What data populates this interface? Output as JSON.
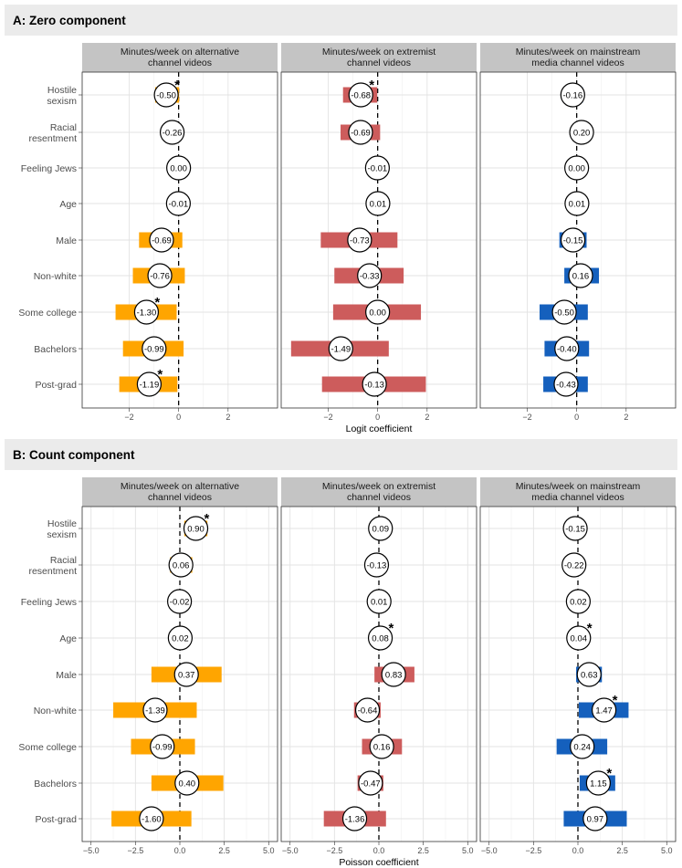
{
  "chart_data": [
    {
      "type": "bar",
      "panel_title": "A: Zero component",
      "xlabel": "Logit coefficient",
      "categories": [
        "Hostile sexism",
        "Racial resentment",
        "Feeling Jews",
        "Age",
        "Male",
        "Non-white",
        "Some college",
        "Bachelors",
        "Post-grad"
      ],
      "category_lines": [
        [
          "Hostile",
          "sexism"
        ],
        [
          "Racial",
          "resentment"
        ],
        [
          "Feeling Jews"
        ],
        [
          "Age"
        ],
        [
          "Male"
        ],
        [
          "Non-white"
        ],
        [
          "Some college"
        ],
        [
          "Bachelors"
        ],
        [
          "Post-grad"
        ]
      ],
      "xlim": [
        -3.9,
        4.0
      ],
      "ticks": [
        -2,
        0,
        2
      ],
      "tick_labels": [
        "−2",
        "0",
        "2"
      ],
      "series": [
        {
          "name": "alternative",
          "title_lines": [
            "Minutes/week on alternative",
            "channel videos"
          ],
          "color": "#FFA500",
          "estimates": [
            -0.5,
            -0.26,
            0.0,
            -0.01,
            -0.69,
            -0.76,
            -1.3,
            -0.99,
            -1.19
          ],
          "labels": [
            "-0.50",
            "-0.26",
            "0.00",
            "-0.01",
            "-0.69",
            "-0.76",
            "-1.30",
            "-0.99",
            "-1.19"
          ],
          "ci_low": [
            -0.95,
            -0.65,
            -0.03,
            -0.03,
            -1.6,
            -1.85,
            -2.55,
            -2.25,
            -2.4
          ],
          "ci_high": [
            0.02,
            0.05,
            0.03,
            0.02,
            0.15,
            0.25,
            -0.08,
            0.2,
            -0.05
          ],
          "significant": [
            true,
            false,
            false,
            false,
            false,
            false,
            true,
            false,
            true
          ]
        },
        {
          "name": "extremist",
          "title_lines": [
            "Minutes/week on extremist",
            "channel videos"
          ],
          "color": "#CD5C5C",
          "estimates": [
            -0.68,
            -0.69,
            -0.01,
            0.01,
            -0.73,
            -0.33,
            0.0,
            -1.49,
            -0.13
          ],
          "labels": [
            "-0.68",
            "-0.69",
            "-0.01",
            "0.01",
            "-0.73",
            "-0.33",
            "0.00",
            "-1.49",
            "-0.13"
          ],
          "ci_low": [
            -1.4,
            -1.5,
            -0.04,
            -0.02,
            -2.3,
            -1.75,
            -1.8,
            -3.5,
            -2.25
          ],
          "ci_high": [
            -0.02,
            0.1,
            0.02,
            0.04,
            0.8,
            1.05,
            1.75,
            0.45,
            1.95
          ],
          "significant": [
            true,
            false,
            false,
            false,
            false,
            false,
            false,
            false,
            false
          ]
        },
        {
          "name": "mainstream",
          "title_lines": [
            "Minutes/week on mainstream",
            "media channel videos"
          ],
          "color": "#1560BD",
          "estimates": [
            -0.16,
            0.2,
            0.0,
            0.01,
            -0.15,
            0.16,
            -0.5,
            -0.4,
            -0.43
          ],
          "labels": [
            "-0.16",
            "0.20",
            "0.00",
            "0.01",
            "-0.15",
            "0.16",
            "-0.50",
            "-0.40",
            "-0.43"
          ],
          "ci_low": [
            -0.55,
            -0.15,
            -0.03,
            -0.02,
            -0.7,
            -0.5,
            -1.5,
            -1.3,
            -1.35
          ],
          "ci_high": [
            0.25,
            0.55,
            0.03,
            0.04,
            0.4,
            0.9,
            0.45,
            0.5,
            0.45
          ],
          "significant": [
            false,
            false,
            false,
            false,
            false,
            false,
            false,
            false,
            false
          ]
        }
      ]
    },
    {
      "type": "bar",
      "panel_title": "B: Count component",
      "xlabel": "Poisson coefficient",
      "categories": [
        "Hostile sexism",
        "Racial resentment",
        "Feeling Jews",
        "Age",
        "Male",
        "Non-white",
        "Some college",
        "Bachelors",
        "Post-grad"
      ],
      "category_lines": [
        [
          "Hostile",
          "sexism"
        ],
        [
          "Racial",
          "resentment"
        ],
        [
          "Feeling Jews"
        ],
        [
          "Age"
        ],
        [
          "Male"
        ],
        [
          "Non-white"
        ],
        [
          "Some college"
        ],
        [
          "Bachelors"
        ],
        [
          "Post-grad"
        ]
      ],
      "xlim": [
        -5.5,
        5.5
      ],
      "ticks": [
        -5,
        -2.5,
        0,
        2.5,
        5
      ],
      "tick_labels": [
        "−5.0",
        "−2.5",
        "0.0",
        "2.5",
        "5.0"
      ],
      "series": [
        {
          "name": "alternative",
          "title_lines": [
            "Minutes/week on alternative",
            "channel videos"
          ],
          "color": "#FFA500",
          "estimates": [
            0.9,
            0.06,
            -0.02,
            0.02,
            0.37,
            -1.39,
            -0.99,
            0.4,
            -1.6
          ],
          "labels": [
            "0.90",
            "0.06",
            "-0.02",
            "0.02",
            "0.37",
            "-1.39",
            "-0.99",
            "0.40",
            "-1.60"
          ],
          "ci_low": [
            0.25,
            -0.55,
            -0.06,
            -0.02,
            -1.6,
            -3.75,
            -2.75,
            -1.6,
            -3.85
          ],
          "ci_high": [
            1.55,
            0.7,
            0.02,
            0.06,
            2.35,
            0.95,
            0.85,
            2.45,
            0.65
          ],
          "significant": [
            true,
            false,
            false,
            false,
            false,
            false,
            false,
            false,
            false
          ]
        },
        {
          "name": "extremist",
          "title_lines": [
            "Minutes/week on extremist",
            "channel videos"
          ],
          "color": "#CD5C5C",
          "estimates": [
            0.09,
            -0.13,
            0.01,
            0.08,
            0.83,
            -0.64,
            0.16,
            -0.47,
            -1.36
          ],
          "labels": [
            "0.09",
            "-0.13",
            "0.01",
            "0.08",
            "0.83",
            "-0.64",
            "0.16",
            "-0.47",
            "-1.36"
          ],
          "ci_low": [
            -0.08,
            -0.4,
            -0.02,
            0.03,
            -0.25,
            -1.4,
            -0.95,
            -1.2,
            -3.1
          ],
          "ci_high": [
            0.25,
            0.15,
            0.04,
            0.13,
            2.0,
            0.1,
            1.3,
            0.25,
            0.4
          ],
          "significant": [
            false,
            false,
            false,
            true,
            false,
            false,
            false,
            false,
            false
          ]
        },
        {
          "name": "mainstream",
          "title_lines": [
            "Minutes/week on mainstream",
            "media channel videos"
          ],
          "color": "#1560BD",
          "estimates": [
            -0.15,
            -0.22,
            0.02,
            0.04,
            0.63,
            1.47,
            0.24,
            1.15,
            0.97
          ],
          "labels": [
            "-0.15",
            "-0.22",
            "0.02",
            "0.04",
            "0.63",
            "1.47",
            "0.24",
            "1.15",
            "0.97"
          ],
          "ci_low": [
            -0.45,
            -0.7,
            -0.02,
            0.01,
            -0.1,
            0.05,
            -1.2,
            0.1,
            -0.8
          ],
          "ci_high": [
            0.15,
            0.25,
            0.06,
            0.08,
            1.35,
            2.85,
            1.65,
            2.1,
            2.75
          ],
          "significant": [
            false,
            false,
            false,
            true,
            false,
            true,
            false,
            true,
            false
          ]
        }
      ]
    }
  ]
}
